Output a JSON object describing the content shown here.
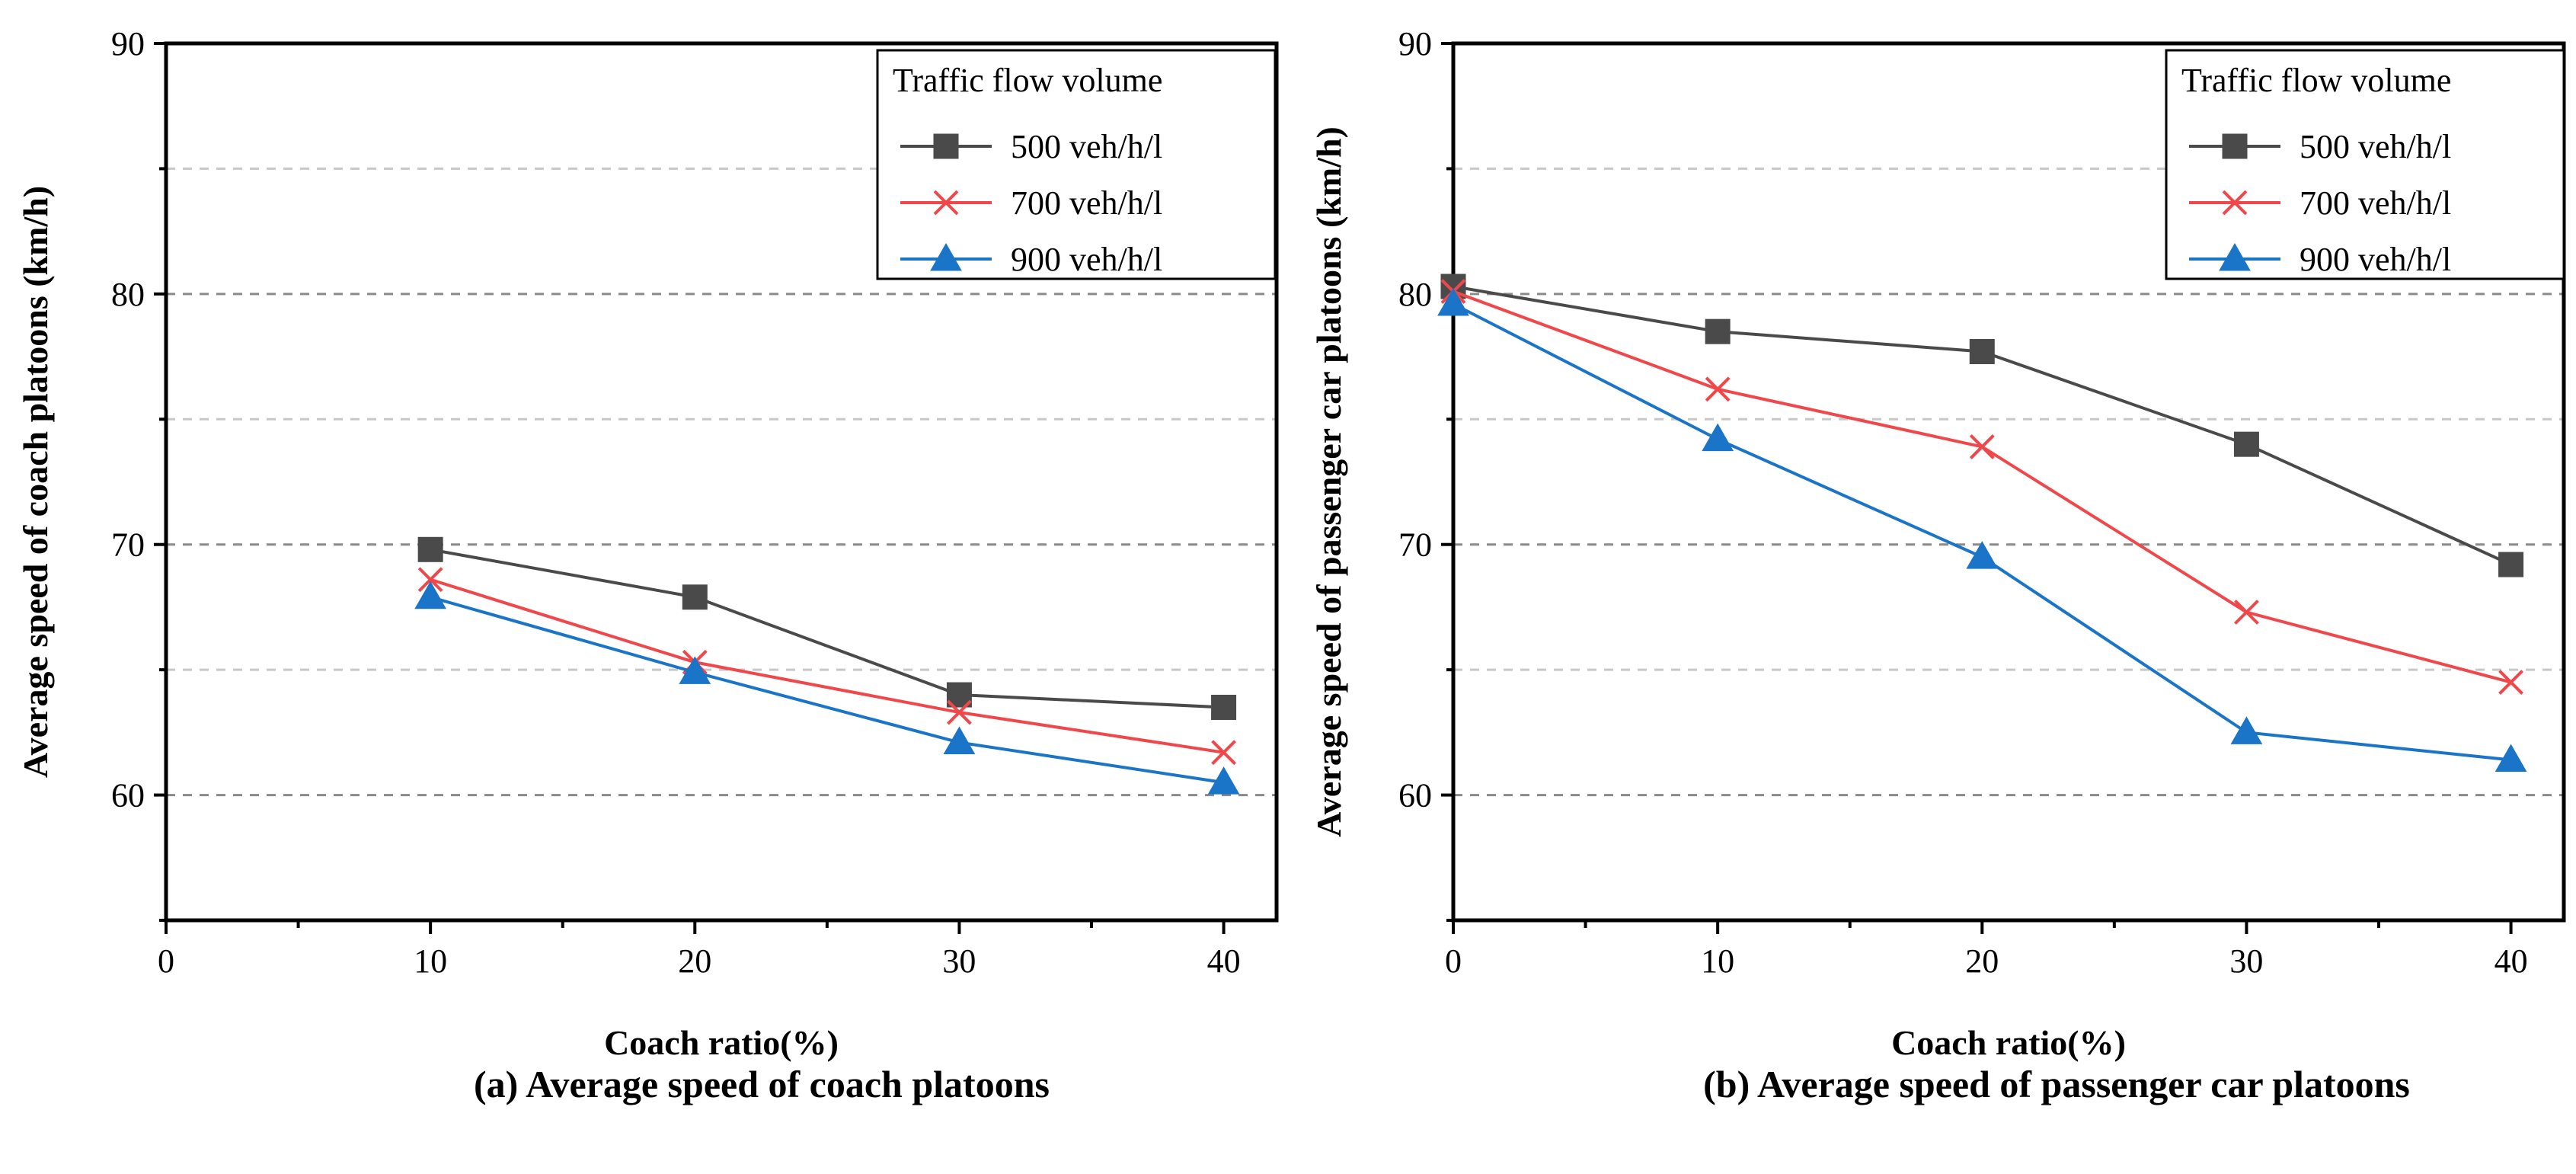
{
  "chart_data": [
    {
      "type": "line",
      "title": "(a) Average speed of coach platoons",
      "xlabel": "Coach ratio(%)",
      "ylabel": "Average speed of coach platoons (km/h)",
      "xlim": [
        0,
        42
      ],
      "ylim": [
        55,
        90
      ],
      "xticks": [
        0,
        10,
        20,
        30,
        40
      ],
      "yticks": [
        60,
        70,
        80,
        90
      ],
      "grid": true,
      "legend_title": "Traffic flow volume",
      "legend_position": "top-right",
      "series": [
        {
          "name": "500 veh/h/l",
          "color": "#4a4a4a",
          "marker": "square",
          "x": [
            10,
            20,
            30,
            40
          ],
          "values": [
            69.8,
            67.9,
            64.0,
            63.5
          ]
        },
        {
          "name": "700 veh/h/l",
          "color": "#f0474a",
          "marker": "x",
          "x": [
            10,
            20,
            30,
            40
          ],
          "values": [
            68.6,
            65.3,
            63.3,
            61.7
          ]
        },
        {
          "name": "900 veh/h/l",
          "color": "#1a74c7",
          "marker": "triangle",
          "x": [
            10,
            20,
            30,
            40
          ],
          "values": [
            67.9,
            64.9,
            62.1,
            60.5
          ]
        }
      ]
    },
    {
      "type": "line",
      "title": "(b) Average speed of passenger car platoons",
      "xlabel": "Coach ratio(%)",
      "ylabel": "Average speed of passenger car platoons (km/h)",
      "xlim": [
        0,
        42
      ],
      "ylim": [
        55,
        90
      ],
      "xticks": [
        0,
        10,
        20,
        30,
        40
      ],
      "yticks": [
        60,
        70,
        80,
        90
      ],
      "grid": true,
      "legend_title": "Traffic flow volume",
      "legend_position": "top-right",
      "series": [
        {
          "name": "500 veh/h/l",
          "color": "#4a4a4a",
          "marker": "square",
          "x": [
            0,
            10,
            20,
            30,
            40
          ],
          "values": [
            80.3,
            78.5,
            77.7,
            74.0,
            69.2
          ]
        },
        {
          "name": "700 veh/h/l",
          "color": "#f0474a",
          "marker": "x",
          "x": [
            0,
            10,
            20,
            30,
            40
          ],
          "values": [
            80.1,
            76.2,
            73.9,
            67.3,
            64.5
          ]
        },
        {
          "name": "900 veh/h/l",
          "color": "#1a74c7",
          "marker": "triangle",
          "x": [
            0,
            10,
            20,
            30,
            40
          ],
          "values": [
            79.6,
            74.2,
            69.5,
            62.5,
            61.4
          ]
        }
      ]
    }
  ]
}
